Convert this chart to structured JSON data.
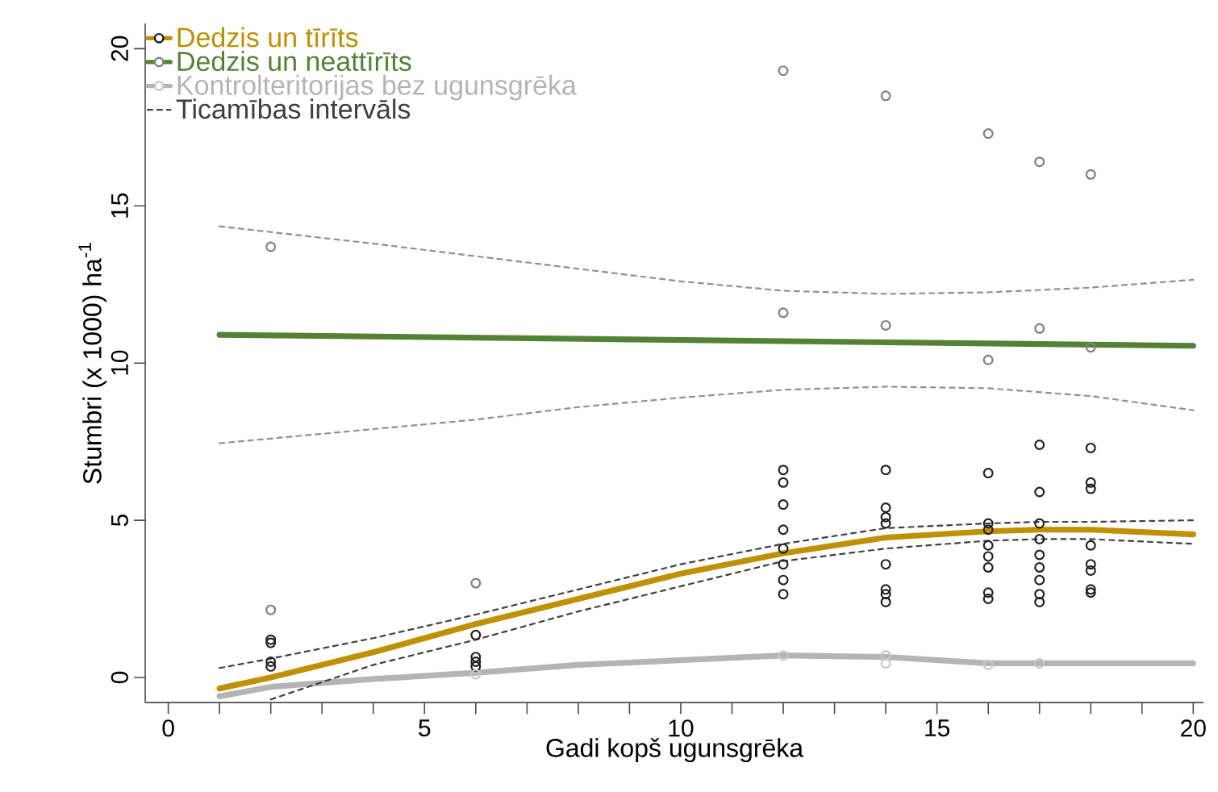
{
  "chart_data": {
    "type": "line",
    "xlabel": "Gadi kopš ugunsgrēka",
    "ylabel": "Stumbri (x 1000) ha$^{-1}$",
    "xlim": [
      -0.45,
      20.2
    ],
    "ylim": [
      -0.8,
      20.8
    ],
    "xticks": [
      0,
      {
        "value": 1,
        "label": null
      },
      {
        "value": 2,
        "label": null
      },
      {
        "value": 3,
        "label": null
      },
      {
        "value": 4,
        "label": null
      },
      5,
      {
        "value": 6,
        "label": null
      },
      {
        "value": 7,
        "label": null
      },
      {
        "value": 8,
        "label": null
      },
      {
        "value": 9,
        "label": null
      },
      10,
      {
        "value": 11,
        "label": null
      },
      {
        "value": 12,
        "label": null
      },
      {
        "value": 13,
        "label": null
      },
      {
        "value": 14,
        "label": null
      },
      15,
      {
        "value": 16,
        "label": null
      },
      {
        "value": 17,
        "label": null
      },
      {
        "value": 18,
        "label": null
      },
      {
        "value": 19,
        "label": null
      },
      20
    ],
    "yticks": [
      0,
      5,
      10,
      15,
      20
    ],
    "grid": false,
    "legend": "top left",
    "series": [
      {
        "name": "Dedzis un tīrīts",
        "color": "#bf9000",
        "x": [
          1,
          2,
          4,
          6,
          8,
          10,
          12,
          14,
          16,
          17,
          18,
          20
        ],
        "values": [
          -0.35,
          0.0,
          0.8,
          1.7,
          2.5,
          3.3,
          3.95,
          4.45,
          4.65,
          4.7,
          4.7,
          4.55
        ]
      },
      {
        "name": "Dedzis un neattīrīts",
        "color": "#548235",
        "x": [
          1,
          20
        ],
        "values": [
          10.9,
          10.55
        ]
      },
      {
        "name": "Kontrolteritorijas bez ugunsgrēka",
        "color": "#b4b4b4",
        "x": [
          1,
          2,
          4,
          6,
          8,
          10,
          12,
          14,
          16,
          17,
          18,
          20
        ],
        "values": [
          -0.6,
          -0.3,
          -0.05,
          0.15,
          0.4,
          0.55,
          0.7,
          0.65,
          0.45,
          0.45,
          0.45,
          0.45
        ]
      },
      {
        "type": "line",
        "line_style": "dashed",
        "name": "Ticamības intervāls",
        "color": "#404040",
        "x": [
          1,
          2,
          4,
          6,
          8,
          10,
          12,
          14,
          16,
          17,
          18,
          20
        ],
        "values": [
          0.3,
          0.6,
          1.25,
          2.0,
          2.8,
          3.6,
          4.25,
          4.75,
          4.9,
          4.95,
          4.95,
          5.0
        ]
      },
      {
        "type": "line",
        "line_style": "dashed",
        "color": "#404040",
        "x": [
          2,
          4,
          6,
          8,
          10,
          12,
          14,
          16,
          17,
          18,
          20
        ],
        "values": [
          -0.7,
          0.4,
          1.2,
          2.1,
          2.9,
          3.7,
          4.1,
          4.35,
          4.4,
          4.4,
          4.25
        ]
      },
      {
        "type": "line",
        "line_style": "dashed",
        "color": "#909090",
        "x": [
          1,
          4,
          6,
          8,
          10,
          12,
          14,
          16,
          18,
          20
        ],
        "values": [
          14.35,
          13.8,
          13.4,
          13.0,
          12.6,
          12.3,
          12.2,
          12.25,
          12.4,
          12.65
        ]
      },
      {
        "type": "line",
        "line_style": "dashed",
        "color": "#909090",
        "x": [
          1,
          4,
          6,
          8,
          10,
          12,
          14,
          16,
          18,
          20
        ],
        "values": [
          7.45,
          7.9,
          8.2,
          8.6,
          8.9,
          9.15,
          9.25,
          9.2,
          8.95,
          8.5
        ]
      },
      {
        "type": "scatter",
        "marker": "circle",
        "color": "#222222",
        "x": [
          2,
          2,
          2,
          2,
          6,
          6,
          6,
          6,
          12,
          12,
          12,
          12,
          12,
          12,
          12,
          12,
          14,
          14,
          14,
          14,
          14,
          14,
          14,
          14,
          16,
          16,
          16,
          16,
          16,
          16,
          16,
          16,
          17,
          17,
          17,
          17,
          17,
          17,
          17,
          17,
          17,
          18,
          18,
          18,
          18,
          18,
          18,
          18,
          18
        ],
        "values": [
          1.2,
          1.1,
          0.5,
          0.35,
          1.35,
          0.65,
          0.5,
          0.35,
          6.6,
          6.2,
          5.5,
          4.7,
          4.1,
          3.6,
          3.1,
          2.65,
          6.6,
          5.4,
          5.1,
          4.9,
          3.6,
          2.8,
          2.65,
          2.4,
          6.5,
          4.9,
          4.7,
          4.2,
          3.85,
          3.5,
          2.7,
          2.5,
          7.4,
          5.9,
          4.9,
          4.4,
          3.9,
          3.5,
          3.1,
          2.65,
          2.4,
          7.3,
          6.2,
          6.0,
          4.2,
          3.6,
          3.4,
          2.8,
          2.7
        ]
      },
      {
        "type": "scatter",
        "marker": "circle",
        "color": "#808080",
        "x": [
          2,
          2,
          6,
          12,
          12,
          14,
          14,
          16,
          16,
          17,
          17,
          18,
          18
        ],
        "values": [
          13.7,
          2.15,
          3.0,
          19.3,
          11.6,
          18.5,
          11.2,
          17.3,
          10.1,
          16.4,
          11.1,
          16.0,
          10.5
        ]
      },
      {
        "type": "scatter",
        "marker": "circle",
        "color": "#c8c8c8",
        "x": [
          6,
          12,
          14,
          14,
          16,
          17
        ],
        "values": [
          0.1,
          0.7,
          0.7,
          0.45,
          0.4,
          0.45
        ]
      }
    ]
  }
}
